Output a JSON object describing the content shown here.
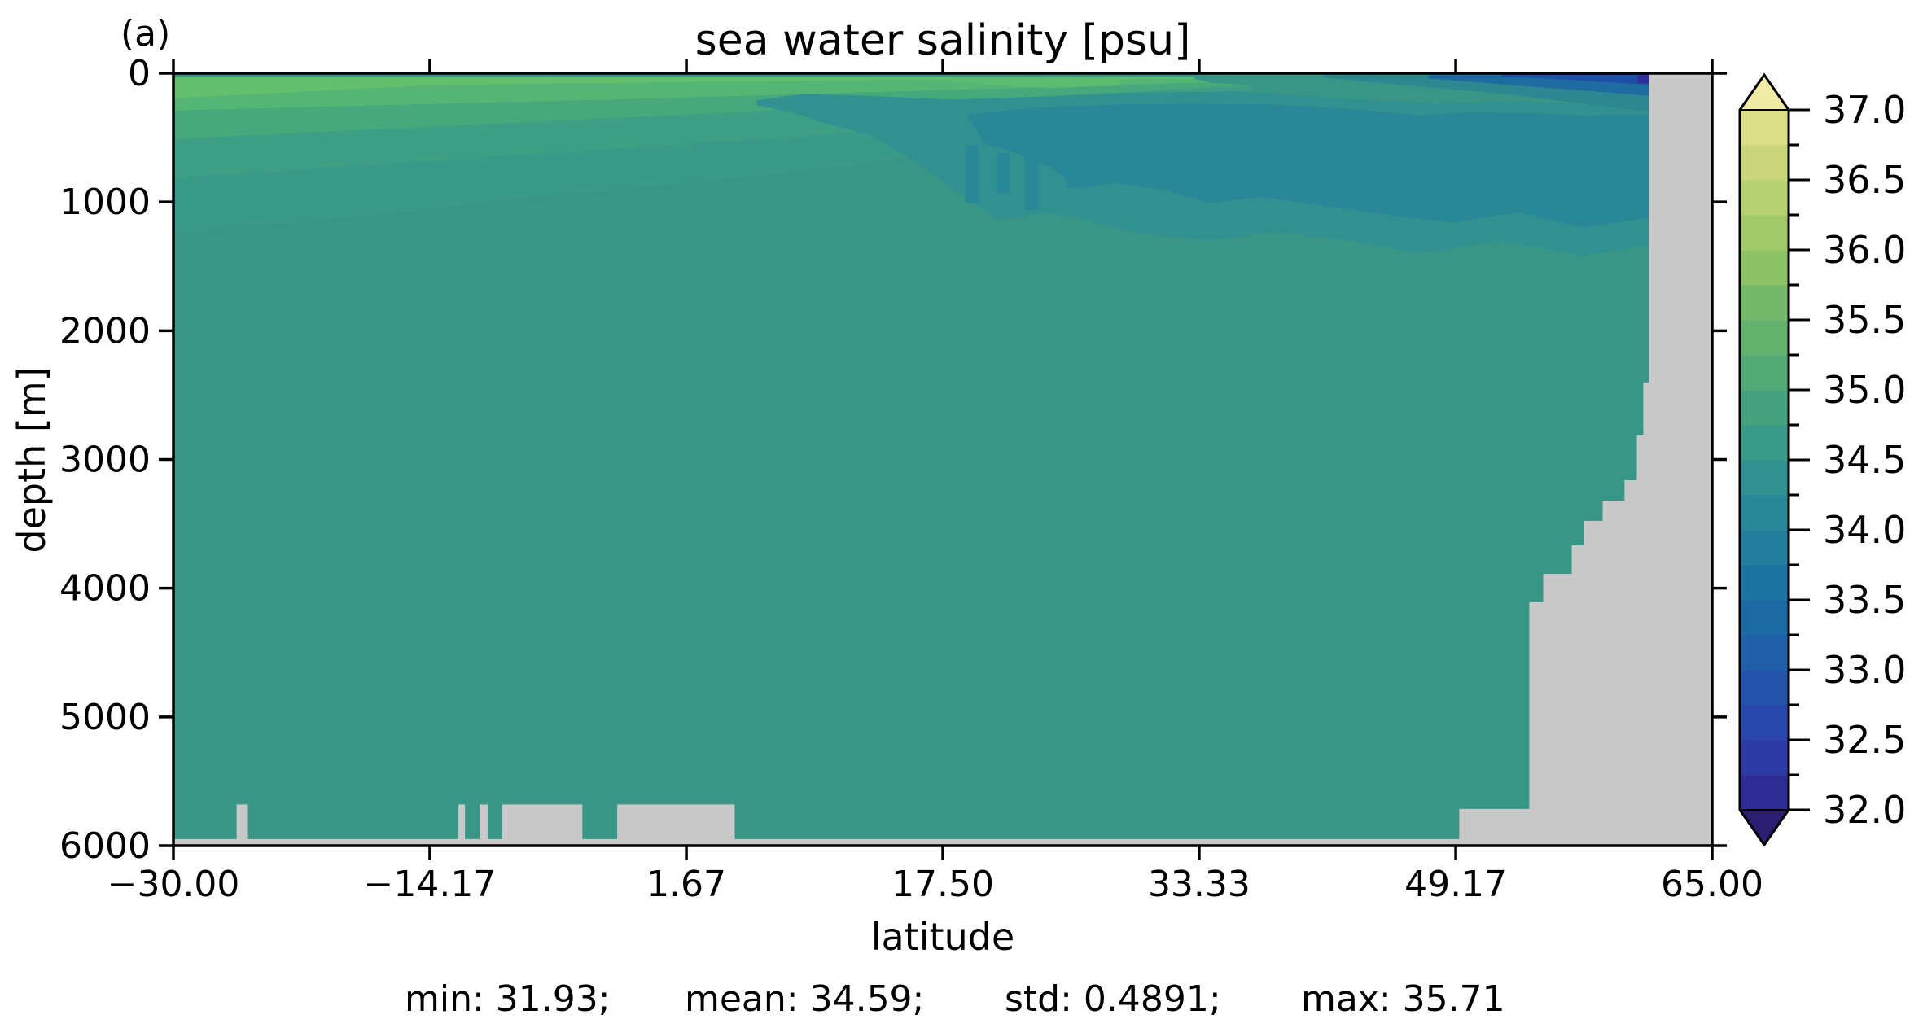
{
  "figure": {
    "panel_label": "(a)",
    "title": "sea water salinity [psu]",
    "xlabel": "latitude",
    "ylabel": "depth [m]",
    "stats": {
      "min_label": "min: 31.93;",
      "mean_label": "mean: 34.59;",
      "std_label": "std: 0.4891;",
      "max_label": "max: 35.71"
    }
  },
  "chart_data": {
    "type": "heatmap",
    "title": "sea water salinity [psu]",
    "xlabel": "latitude",
    "ylabel": "depth [m]",
    "xlim": [
      -30,
      65
    ],
    "depth_range_m": [
      0,
      6000
    ],
    "y_axis_inverted": true,
    "grid": false,
    "stats": {
      "min": 31.93,
      "mean": 34.59,
      "std": 0.4891,
      "max": 35.71
    },
    "x_ticks": {
      "values": [
        -30,
        -14.17,
        1.67,
        17.5,
        33.33,
        49.17,
        65
      ],
      "labels": [
        "−30.00",
        "−14.17",
        "1.67",
        "17.50",
        "33.33",
        "49.17",
        "65.00"
      ]
    },
    "y_ticks": {
      "values": [
        0,
        1000,
        2000,
        3000,
        4000,
        5000,
        6000
      ],
      "labels": [
        "0",
        "1000",
        "2000",
        "3000",
        "4000",
        "5000",
        "6000"
      ]
    },
    "colorbar": {
      "vmin": 32.0,
      "vmax": 37.0,
      "level_step": 0.25,
      "tick_step": 0.5,
      "tick_labels": [
        "37.0",
        "36.5",
        "36.0",
        "35.5",
        "35.0",
        "34.5",
        "34.0",
        "33.5",
        "33.0",
        "32.5",
        "32.0"
      ],
      "band_colors_bottom_to_top": [
        "#2f2b94",
        "#2e3aa5",
        "#2a47ab",
        "#2453aa",
        "#1f5fa7",
        "#1c6aa3",
        "#1e74a0",
        "#227e9c",
        "#288897",
        "#309190",
        "#399a88",
        "#44a27f",
        "#52aa76",
        "#62b26e",
        "#73b969",
        "#8ec266",
        "#a2c968",
        "#b6d06f",
        "#c9d77a",
        "#dcdf87"
      ],
      "under_color": "#2b1d6f",
      "over_color": "#f0eba5"
    },
    "colors": {
      "background_band": "#399687",
      "land": "#c8c8c8",
      "axes": "#000000"
    },
    "regions": [
      {
        "name": "green-band-5",
        "value_band": "34.5-34.75+",
        "color": "#3a9a88",
        "points": [
          [
            -30,
            810
          ],
          [
            10,
            480
          ],
          [
            36.5,
            150
          ],
          [
            36.5,
            200
          ],
          [
            12,
            720
          ],
          [
            -30,
            1250
          ]
        ]
      },
      {
        "name": "green-band-4",
        "value_band": "34.75-35.0",
        "color": "#3da085",
        "points": [
          [
            -30,
            510
          ],
          [
            5,
            300
          ],
          [
            36.5,
            95
          ],
          [
            36.5,
            150
          ],
          [
            10,
            480
          ],
          [
            -30,
            810
          ]
        ]
      },
      {
        "name": "green-band-3",
        "value_band": "35.0-35.25",
        "color": "#47a97b",
        "points": [
          [
            -30,
            290
          ],
          [
            0,
            195
          ],
          [
            34,
            72
          ],
          [
            36.5,
            95
          ],
          [
            5,
            300
          ],
          [
            -30,
            510
          ]
        ]
      },
      {
        "name": "green-band-2",
        "value_band": "35.25-35.5",
        "color": "#55b574",
        "points": [
          [
            -30,
            195
          ],
          [
            -14,
            92
          ],
          [
            15,
            50
          ],
          [
            33,
            42
          ],
          [
            34,
            72
          ],
          [
            0,
            195
          ],
          [
            -30,
            290
          ]
        ]
      },
      {
        "name": "green-band-1",
        "value_band": "35.5-35.75",
        "color": "#63c06d",
        "points": [
          [
            -30,
            28
          ],
          [
            33,
            28
          ],
          [
            33,
            42
          ],
          [
            15,
            50
          ],
          [
            -14,
            92
          ],
          [
            -30,
            195
          ]
        ]
      },
      {
        "name": "surface-green-patch",
        "value_band": "35.25-35.5",
        "color": "#5cbb70",
        "points": [
          [
            18,
            30
          ],
          [
            28.5,
            25
          ],
          [
            28.5,
            95
          ],
          [
            24,
            115
          ],
          [
            18,
            70
          ]
        ]
      },
      {
        "name": "subsurface-blob-34.25",
        "value_band": "34.25-34.5",
        "color": "#309190",
        "points": [
          [
            6,
            210
          ],
          [
            9,
            160
          ],
          [
            13,
            175
          ],
          [
            18,
            205
          ],
          [
            25,
            175
          ],
          [
            30,
            150
          ],
          [
            36,
            140
          ],
          [
            42,
            195
          ],
          [
            48,
            235
          ],
          [
            53,
            215
          ],
          [
            57,
            240
          ],
          [
            61.2,
            235
          ],
          [
            61.2,
            1330
          ],
          [
            57,
            1420
          ],
          [
            52,
            1300
          ],
          [
            47,
            1400
          ],
          [
            43,
            1310
          ],
          [
            38,
            1230
          ],
          [
            34,
            1300
          ],
          [
            30,
            1250
          ],
          [
            27,
            1160
          ],
          [
            24,
            1080
          ],
          [
            21,
            1140
          ],
          [
            19,
            980
          ],
          [
            16,
            700
          ],
          [
            13,
            480
          ],
          [
            10,
            380
          ],
          [
            8,
            300
          ],
          [
            6,
            250
          ]
        ]
      },
      {
        "name": "subsurface-blob-34.0",
        "value_band": "34.0-34.25",
        "color": "#288897",
        "points": [
          [
            19,
            320
          ],
          [
            23,
            270
          ],
          [
            28,
            245
          ],
          [
            33,
            235
          ],
          [
            38,
            245
          ],
          [
            43,
            280
          ],
          [
            47,
            330
          ],
          [
            50,
            300
          ],
          [
            54,
            310
          ],
          [
            57,
            330
          ],
          [
            61.2,
            320
          ],
          [
            61.2,
            1120
          ],
          [
            57,
            1200
          ],
          [
            53,
            1080
          ],
          [
            49,
            1160
          ],
          [
            45,
            1100
          ],
          [
            41,
            1030
          ],
          [
            37,
            960
          ],
          [
            34,
            1010
          ],
          [
            31,
            900
          ],
          [
            28,
            850
          ],
          [
            26,
            900
          ],
          [
            24,
            720
          ],
          [
            22,
            620
          ],
          [
            20,
            540
          ],
          [
            19.5,
            430
          ]
        ]
      },
      {
        "name": "blob-finger-1",
        "value_band": "34.0-34.25",
        "color": "#288897",
        "points": [
          [
            18.9,
            560
          ],
          [
            19.7,
            560
          ],
          [
            19.7,
            1010
          ],
          [
            18.9,
            1010
          ]
        ]
      },
      {
        "name": "blob-finger-2",
        "value_band": "34.0-34.25",
        "color": "#288897",
        "points": [
          [
            20.8,
            620
          ],
          [
            21.6,
            620
          ],
          [
            21.6,
            930
          ],
          [
            20.8,
            930
          ]
        ]
      },
      {
        "name": "blob-finger-3",
        "value_band": "34.0-34.25",
        "color": "#288897",
        "points": [
          [
            22.6,
            520
          ],
          [
            23.4,
            520
          ],
          [
            23.4,
            1060
          ],
          [
            22.6,
            1060
          ]
        ]
      },
      {
        "name": "blob-finger-4",
        "value_band": "34.0-34.25",
        "color": "#288897",
        "points": [
          [
            25.1,
            650
          ],
          [
            25.9,
            650
          ],
          [
            25.9,
            890
          ],
          [
            25.1,
            890
          ]
        ]
      },
      {
        "name": "arctic-surface-strip-1",
        "value_band": "33.75-34.0",
        "color": "#2d8791",
        "points": [
          [
            41,
            0
          ],
          [
            61.2,
            0
          ],
          [
            61.2,
            300
          ],
          [
            52,
            160
          ],
          [
            45,
            80
          ],
          [
            41,
            35
          ]
        ]
      },
      {
        "name": "arctic-surface-strip-2",
        "value_band": "33.25-33.5",
        "color": "#1d6ba0",
        "points": [
          [
            47.5,
            0
          ],
          [
            61.2,
            0
          ],
          [
            61.2,
            175
          ],
          [
            53,
            95
          ],
          [
            47.5,
            40
          ]
        ]
      },
      {
        "name": "arctic-surface-strip-3",
        "value_band": "32.75-33.0",
        "color": "#1d4fa6",
        "points": [
          [
            52,
            0
          ],
          [
            61.2,
            0
          ],
          [
            61.2,
            90
          ],
          [
            55.5,
            45
          ],
          [
            52,
            25
          ]
        ]
      },
      {
        "name": "arctic-surface-navy-cell",
        "value_band": "32.0-32.25",
        "color": "#312f9e",
        "points": [
          [
            60.4,
            0
          ],
          [
            61.2,
            0
          ],
          [
            61.2,
            80
          ],
          [
            60.4,
            80
          ]
        ]
      },
      {
        "name": "land-topography-right",
        "value_band": "masked",
        "color": "#c8c8c8",
        "points": [
          [
            61.1,
            0
          ],
          [
            65,
            0
          ],
          [
            65,
            6000
          ],
          [
            -30,
            6000
          ],
          [
            -30,
            5949
          ],
          [
            49.39,
            5949
          ],
          [
            49.39,
            5715
          ],
          [
            53.71,
            5715
          ],
          [
            53.71,
            4109
          ],
          [
            54.57,
            4109
          ],
          [
            54.57,
            3888
          ],
          [
            56.33,
            3888
          ],
          [
            56.33,
            3667
          ],
          [
            57.08,
            3667
          ],
          [
            57.08,
            3477
          ],
          [
            58.24,
            3477
          ],
          [
            58.24,
            3319
          ],
          [
            59.59,
            3319
          ],
          [
            59.59,
            3161
          ],
          [
            60.35,
            3161
          ],
          [
            60.35,
            2813
          ],
          [
            60.75,
            2813
          ],
          [
            60.75,
            2402
          ],
          [
            61.1,
            2402
          ]
        ]
      },
      {
        "name": "land-seamount",
        "value_band": "masked",
        "color": "#c8c8c8",
        "points": [
          [
            -26.1,
            5680
          ],
          [
            -25.4,
            5680
          ],
          [
            -25.4,
            6000
          ],
          [
            -26.1,
            6000
          ]
        ]
      },
      {
        "name": "land-bottom-pillar-1",
        "value_band": "masked",
        "color": "#c8c8c8",
        "points": [
          [
            -12.4,
            5680
          ],
          [
            -12.0,
            5680
          ],
          [
            -12.0,
            6000
          ],
          [
            -12.4,
            6000
          ]
        ]
      },
      {
        "name": "land-bottom-pillar-2",
        "value_band": "masked",
        "color": "#c8c8c8",
        "points": [
          [
            -11.1,
            5680
          ],
          [
            -10.6,
            5680
          ],
          [
            -10.6,
            6000
          ],
          [
            -11.1,
            6000
          ]
        ]
      },
      {
        "name": "land-bottom-block-1",
        "value_band": "masked",
        "color": "#c8c8c8",
        "points": [
          [
            -9.7,
            5680
          ],
          [
            -4.75,
            5680
          ],
          [
            -4.75,
            6000
          ],
          [
            -9.7,
            6000
          ]
        ]
      },
      {
        "name": "land-bottom-block-2",
        "value_band": "masked",
        "color": "#c8c8c8",
        "points": [
          [
            -2.6,
            5680
          ],
          [
            4.65,
            5680
          ],
          [
            4.65,
            6000
          ],
          [
            -2.6,
            6000
          ]
        ]
      }
    ]
  }
}
